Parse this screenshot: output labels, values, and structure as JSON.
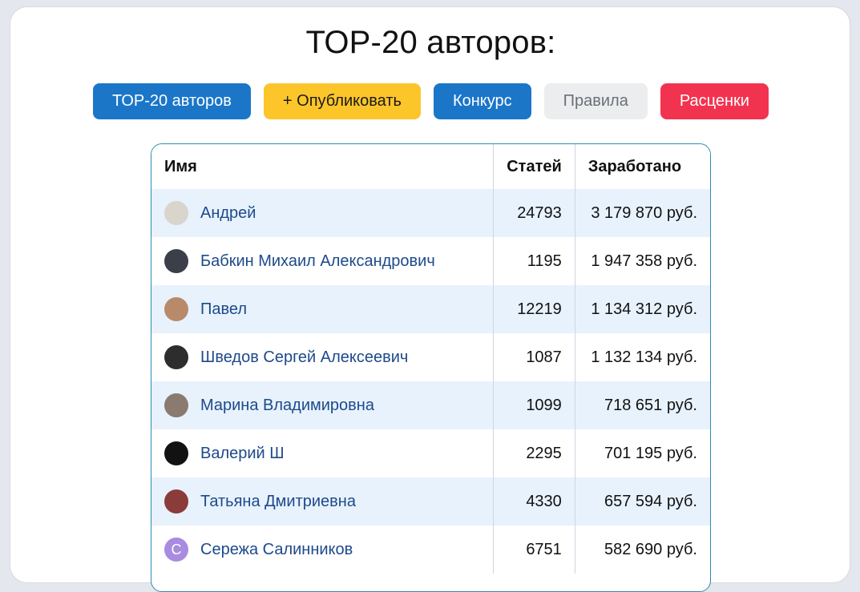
{
  "page": {
    "title": "ТОР-20 авторов:"
  },
  "buttons": [
    {
      "label": "ТОР-20 авторов",
      "style": "blue"
    },
    {
      "label": "+ Опубликовать",
      "style": "yellow"
    },
    {
      "label": "Конкурс",
      "style": "blue"
    },
    {
      "label": "Правила",
      "style": "gray"
    },
    {
      "label": "Расценки",
      "style": "red"
    }
  ],
  "table": {
    "headers": {
      "name": "Имя",
      "articles": "Статей",
      "earned": "Заработано"
    },
    "rows": [
      {
        "name": "Андрей",
        "articles": "24793",
        "earned": "3 179 870 руб.",
        "avatar_color": "#d9d4cc"
      },
      {
        "name": "Бабкин Михаил Александрович",
        "articles": "1195",
        "earned": "1 947 358 руб.",
        "avatar_color": "#3a3f4a"
      },
      {
        "name": "Павел",
        "articles": "12219",
        "earned": "1 134 312 руб.",
        "avatar_color": "#b98a6a"
      },
      {
        "name": "Шведов Сергей Алексеевич",
        "articles": "1087",
        "earned": "1 132 134 руб.",
        "avatar_color": "#2d2d2d"
      },
      {
        "name": "Марина Владимировна",
        "articles": "1099",
        "earned": "718 651 руб.",
        "avatar_color": "#8a7a70"
      },
      {
        "name": "Валерий Ш",
        "articles": "2295",
        "earned": "701 195 руб.",
        "avatar_color": "#121212"
      },
      {
        "name": "Татьяна Дмитриевна",
        "articles": "4330",
        "earned": "657 594 руб.",
        "avatar_color": "#8c3b3b"
      },
      {
        "name": "Сережа Салинников",
        "articles": "6751",
        "earned": "582 690 руб.",
        "avatar_color": "#a98be0",
        "avatar_letter": "С"
      }
    ]
  },
  "colors": {
    "primary_blue": "#1b76c8",
    "publish_yellow": "#fcc62a",
    "rules_gray": "#ebedef",
    "prices_red": "#f2334f",
    "row_highlight": "#e8f2fd",
    "table_border": "#2f8bb0",
    "author_link": "#1d4a8a"
  }
}
